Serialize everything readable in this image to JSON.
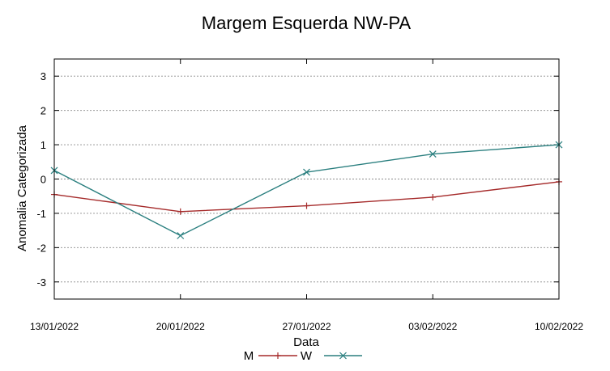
{
  "chart_data": {
    "type": "line",
    "title": "Margem Esquerda NW-PA",
    "xlabel": "Data",
    "ylabel": "Anomalia Categorizada",
    "categories": [
      "13/01/2022",
      "20/01/2022",
      "27/01/2022",
      "03/02/2022",
      "10/02/2022"
    ],
    "ylim": [
      -3.5,
      3.5
    ],
    "yticks": [
      3,
      2,
      1,
      0,
      -1,
      -2,
      -3
    ],
    "ytick_labels": [
      "3",
      "2",
      "1",
      "0",
      "-1",
      "-2",
      "-3"
    ],
    "grid": true,
    "legend_position": "bottom-center",
    "series": [
      {
        "name": "M",
        "values": [
          -0.45,
          -0.95,
          -0.78,
          -0.53,
          -0.08
        ],
        "color": "#a52a2a",
        "marker": "plus"
      },
      {
        "name": "W",
        "values": [
          0.25,
          -1.65,
          0.2,
          0.73,
          1.0
        ],
        "color": "#2a7f7f",
        "marker": "cross"
      }
    ]
  }
}
